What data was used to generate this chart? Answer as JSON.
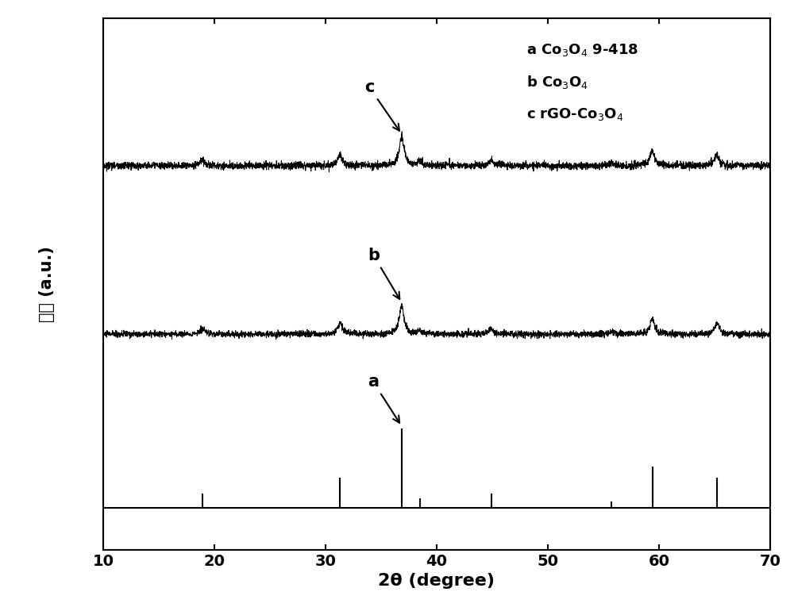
{
  "xmin": 10,
  "xmax": 70,
  "xticks": [
    10,
    20,
    30,
    40,
    50,
    60,
    70
  ],
  "xlabel": "2θ (degree)",
  "ylabel": "强度（a.u.）",
  "background_color": "#ffffff",
  "line_color": "#000000",
  "co3o4_peaks": [
    18.9,
    31.3,
    36.85,
    38.5,
    44.9,
    55.7,
    59.4,
    65.2
  ],
  "co3o4_heights": [
    0.18,
    0.38,
    1.0,
    0.12,
    0.18,
    0.08,
    0.52,
    0.38
  ],
  "stick_peaks": [
    18.9,
    31.3,
    36.85,
    38.5,
    44.9,
    55.7,
    59.4,
    65.2
  ],
  "stick_heights": [
    0.18,
    0.38,
    1.0,
    0.12,
    0.18,
    0.08,
    0.52,
    0.38
  ],
  "noise_amplitude": 0.055,
  "figwidth": 10.0,
  "figheight": 7.7,
  "dpi": 100
}
